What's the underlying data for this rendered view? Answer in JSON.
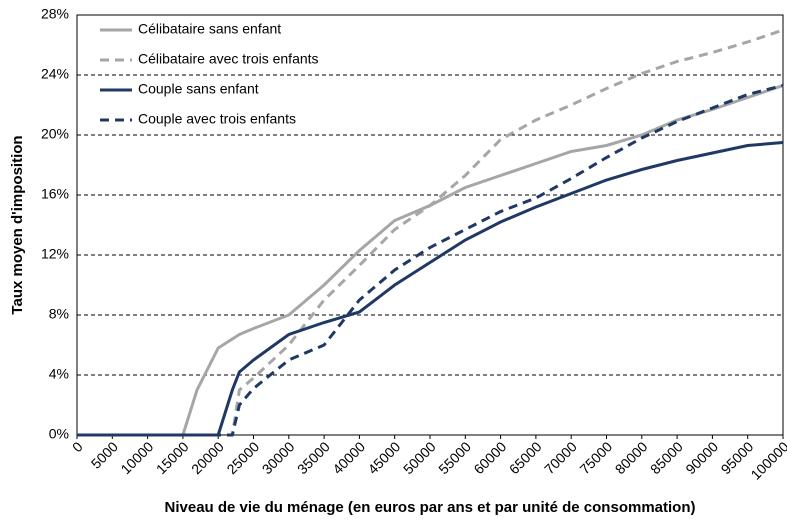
{
  "chart_data": {
    "type": "line",
    "x_label": "Niveau de vie du ménage (en euros par ans et par unité de consommation)",
    "y_label": "Taux moyen d'imposition",
    "x": [
      0,
      5000,
      10000,
      15000,
      17000,
      20000,
      22000,
      23000,
      25000,
      30000,
      35000,
      40000,
      45000,
      50000,
      55000,
      60000,
      65000,
      70000,
      75000,
      80000,
      85000,
      90000,
      95000,
      100000
    ],
    "series": [
      {
        "name": "Célibataire sans enfant",
        "color": "#a6a6a6",
        "dash": false,
        "values": [
          0,
          0,
          0,
          0,
          3,
          5.8,
          6.4,
          6.7,
          7.1,
          8,
          10,
          12.3,
          14.3,
          15.3,
          16.5,
          17.3,
          18.1,
          18.9,
          19.3,
          20,
          21,
          21.7,
          22.5,
          23.3
        ]
      },
      {
        "name": "Célibataire avec trois enfants",
        "color": "#a6a6a6",
        "dash": true,
        "values": [
          0,
          0,
          0,
          0,
          0,
          0,
          0,
          3,
          3.8,
          6,
          9,
          11.3,
          13.7,
          15.3,
          17.3,
          19.7,
          21,
          22,
          23.1,
          24.1,
          24.9,
          25.5,
          26.2,
          27
        ]
      },
      {
        "name": "Couple sans enfant",
        "color": "#1f3864",
        "dash": false,
        "values": [
          0,
          0,
          0,
          0,
          0,
          0,
          3,
          4.2,
          5,
          6.7,
          7.5,
          8.2,
          10,
          11.5,
          13,
          14.2,
          15.2,
          16.1,
          17,
          17.7,
          18.3,
          18.8,
          19.3,
          19.5
        ]
      },
      {
        "name": "Couple avec trois enfants",
        "color": "#1f3864",
        "dash": true,
        "values": [
          0,
          0,
          0,
          0,
          0,
          0,
          0,
          2,
          3.1,
          5,
          6,
          9,
          11,
          12.5,
          13.7,
          14.9,
          15.8,
          17.1,
          18.5,
          19.8,
          20.9,
          21.8,
          22.7,
          23.3
        ]
      }
    ],
    "xlim": [
      0,
      100000
    ],
    "xticks": [
      0,
      5000,
      10000,
      15000,
      20000,
      25000,
      30000,
      35000,
      40000,
      45000,
      50000,
      55000,
      60000,
      65000,
      70000,
      75000,
      80000,
      85000,
      90000,
      95000,
      100000
    ],
    "ylim": [
      0,
      28
    ],
    "yticks": [
      {
        "value": 0,
        "label": "0%"
      },
      {
        "value": 4,
        "label": "4%"
      },
      {
        "value": 8,
        "label": "8%"
      },
      {
        "value": 12,
        "label": "12%"
      },
      {
        "value": 16,
        "label": "16%"
      },
      {
        "value": 20,
        "label": "20%"
      },
      {
        "value": 24,
        "label": "24%"
      },
      {
        "value": 28,
        "label": "28%"
      }
    ],
    "grid": true,
    "legend": "top-left"
  }
}
